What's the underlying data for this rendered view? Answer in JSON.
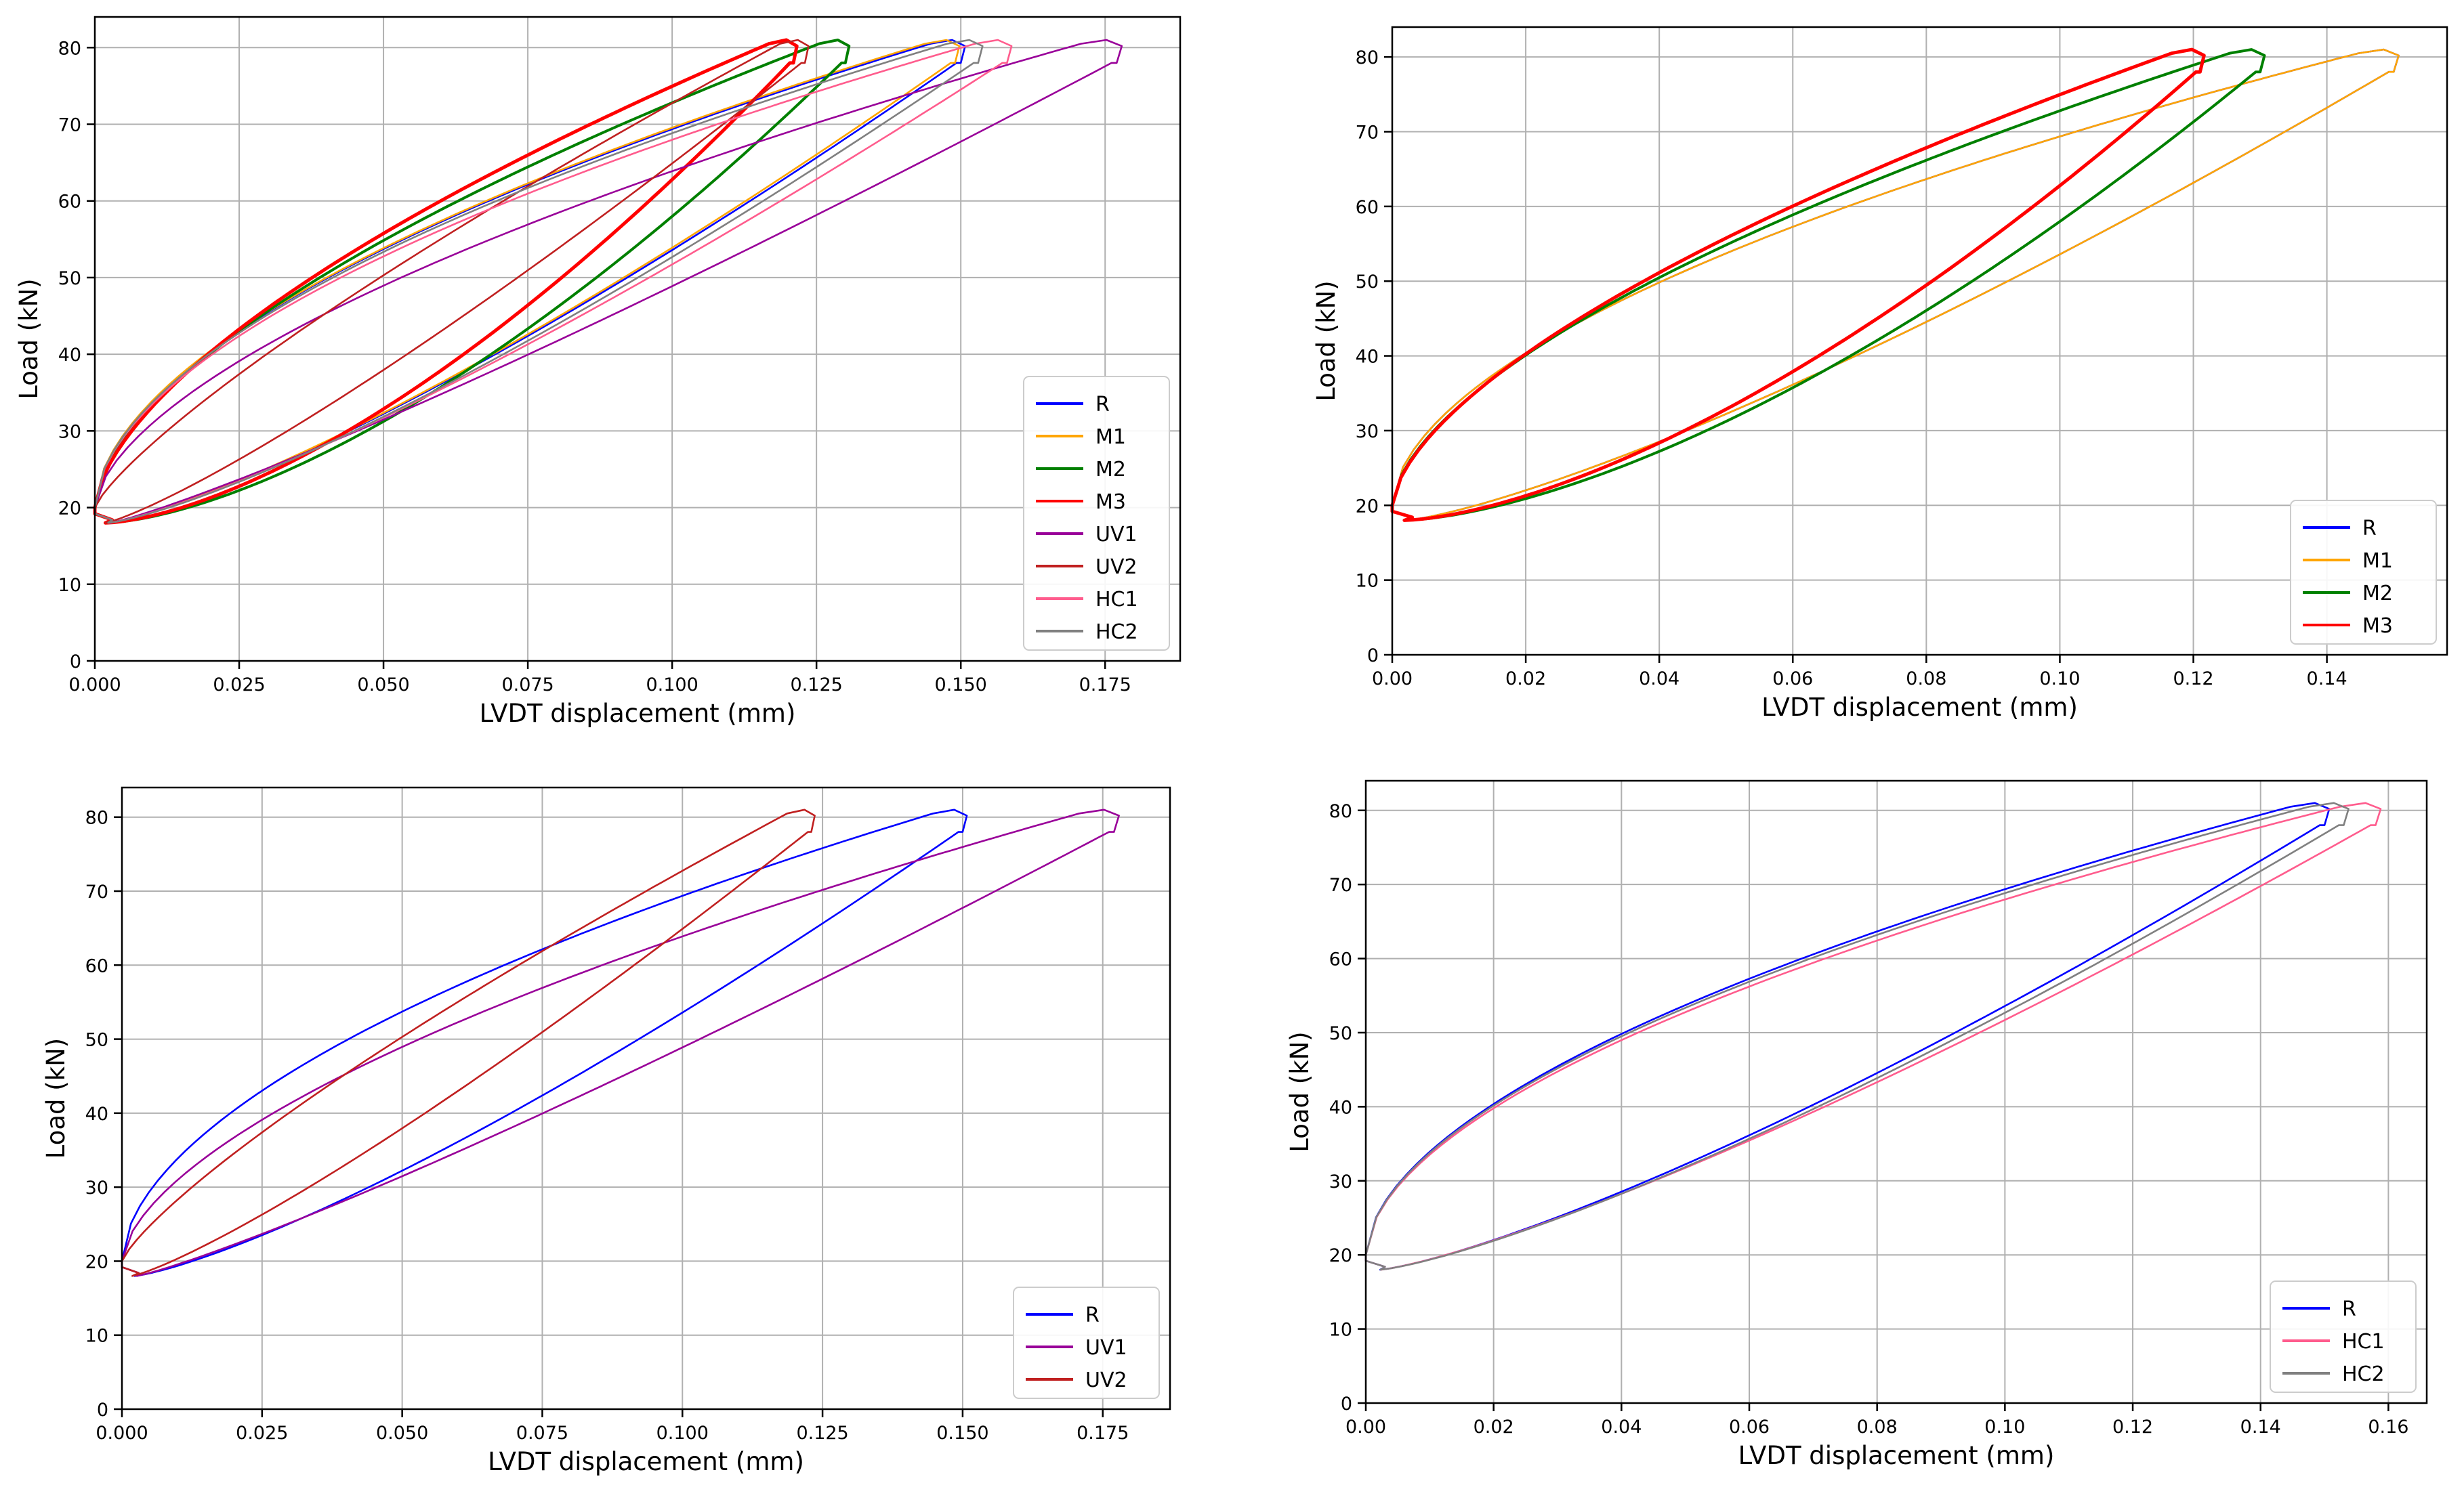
{
  "chart_data": [
    {
      "type": "line",
      "xlabel": "LVDT displacement (mm)",
      "ylabel": "Load (kN)",
      "xlim": [
        0,
        0.188
      ],
      "ylim": [
        0,
        84
      ],
      "xticks": [
        "0.000",
        "0.025",
        "0.050",
        "0.075",
        "0.100",
        "0.125",
        "0.150",
        "0.175"
      ],
      "xtick_values": [
        0,
        0.025,
        0.05,
        0.075,
        0.1,
        0.125,
        0.15,
        0.175
      ],
      "yticks": [
        "0",
        "10",
        "20",
        "30",
        "40",
        "50",
        "60",
        "70",
        "80"
      ],
      "ytick_values": [
        0,
        10,
        20,
        30,
        40,
        50,
        60,
        70,
        80
      ],
      "grid": true,
      "legend_position": "lower-right",
      "series": [
        {
          "name": "R",
          "color": "#0000ff",
          "xmax": 0.15,
          "lo_exp": 1.28,
          "up_exp": 0.55,
          "lw": 2.6
        },
        {
          "name": "M1",
          "color": "#ffa500",
          "xmax": 0.149,
          "lo_exp": 1.28,
          "up_exp": 0.55,
          "lw": 2.6
        },
        {
          "name": "M2",
          "color": "#008000",
          "xmax": 0.13,
          "lo_exp": 1.55,
          "up_exp": 0.6,
          "lw": 4
        },
        {
          "name": "M3",
          "color": "#ff0000",
          "xmax": 0.121,
          "lo_exp": 1.55,
          "up_exp": 0.62,
          "lw": 5
        },
        {
          "name": "UV1",
          "color": "#990099",
          "xmax": 0.177,
          "lo_exp": 1.15,
          "up_exp": 0.6,
          "lw": 2.6
        },
        {
          "name": "UV2",
          "color": "#c02020",
          "xmax": 0.123,
          "lo_exp": 1.2,
          "up_exp": 0.8,
          "lw": 2.6
        },
        {
          "name": "HC1",
          "color": "#ff5c8d",
          "xmax": 0.158,
          "lo_exp": 1.25,
          "up_exp": 0.55,
          "lw": 2.6
        },
        {
          "name": "HC2",
          "color": "#808080",
          "xmax": 0.153,
          "lo_exp": 1.28,
          "up_exp": 0.55,
          "lw": 2.6
        }
      ]
    },
    {
      "type": "line",
      "xlabel": "LVDT displacement (mm)",
      "ylabel": "Load (kN)",
      "xlim": [
        0,
        0.158
      ],
      "ylim": [
        0,
        84
      ],
      "xticks": [
        "0.00",
        "0.02",
        "0.04",
        "0.06",
        "0.08",
        "0.10",
        "0.12",
        "0.14"
      ],
      "xtick_values": [
        0,
        0.02,
        0.04,
        0.06,
        0.08,
        0.1,
        0.12,
        0.14
      ],
      "yticks": [
        "0",
        "10",
        "20",
        "30",
        "40",
        "50",
        "60",
        "70",
        "80"
      ],
      "ytick_values": [
        0,
        10,
        20,
        30,
        40,
        50,
        60,
        70,
        80
      ],
      "grid": true,
      "legend_position": "lower-right",
      "series": [
        {
          "name": "R",
          "color": "#0000ff",
          "xmax": 0.15,
          "lo_exp": 1.28,
          "up_exp": 0.55,
          "lw": 2.6
        },
        {
          "name": "M1",
          "color": "#ffa500",
          "xmax": 0.15,
          "lo_exp": 1.28,
          "up_exp": 0.55,
          "lw": 2.6
        },
        {
          "name": "M2",
          "color": "#008000",
          "xmax": 0.13,
          "lo_exp": 1.55,
          "up_exp": 0.6,
          "lw": 4
        },
        {
          "name": "M3",
          "color": "#ff0000",
          "xmax": 0.121,
          "lo_exp": 1.55,
          "up_exp": 0.62,
          "lw": 5
        }
      ]
    },
    {
      "type": "line",
      "xlabel": "LVDT displacement (mm)",
      "ylabel": "Load (kN)",
      "xlim": [
        0,
        0.187
      ],
      "ylim": [
        0,
        84
      ],
      "xticks": [
        "0.000",
        "0.025",
        "0.050",
        "0.075",
        "0.100",
        "0.125",
        "0.150",
        "0.175"
      ],
      "xtick_values": [
        0,
        0.025,
        0.05,
        0.075,
        0.1,
        0.125,
        0.15,
        0.175
      ],
      "yticks": [
        "0",
        "10",
        "20",
        "30",
        "40",
        "50",
        "60",
        "70",
        "80"
      ],
      "ytick_values": [
        0,
        10,
        20,
        30,
        40,
        50,
        60,
        70,
        80
      ],
      "grid": true,
      "legend_position": "lower-right",
      "series": [
        {
          "name": "R",
          "color": "#0000ff",
          "xmax": 0.15,
          "lo_exp": 1.28,
          "up_exp": 0.55,
          "lw": 2.6
        },
        {
          "name": "UV1",
          "color": "#990099",
          "xmax": 0.177,
          "lo_exp": 1.15,
          "up_exp": 0.6,
          "lw": 2.6
        },
        {
          "name": "UV2",
          "color": "#c02020",
          "xmax": 0.123,
          "lo_exp": 1.2,
          "up_exp": 0.8,
          "lw": 2.6
        }
      ]
    },
    {
      "type": "line",
      "xlabel": "LVDT displacement (mm)",
      "ylabel": "Load (kN)",
      "xlim": [
        0,
        0.166
      ],
      "ylim": [
        0,
        84
      ],
      "xticks": [
        "0.00",
        "0.02",
        "0.04",
        "0.06",
        "0.08",
        "0.10",
        "0.12",
        "0.14",
        "0.16"
      ],
      "xtick_values": [
        0,
        0.02,
        0.04,
        0.06,
        0.08,
        0.1,
        0.12,
        0.14,
        0.16
      ],
      "yticks": [
        "0",
        "10",
        "20",
        "30",
        "40",
        "50",
        "60",
        "70",
        "80"
      ],
      "ytick_values": [
        0,
        10,
        20,
        30,
        40,
        50,
        60,
        70,
        80
      ],
      "grid": true,
      "legend_position": "lower-right",
      "series": [
        {
          "name": "R",
          "color": "#0000ff",
          "xmax": 0.15,
          "lo_exp": 1.28,
          "up_exp": 0.55,
          "lw": 2.6
        },
        {
          "name": "HC1",
          "color": "#ff5c8d",
          "xmax": 0.158,
          "lo_exp": 1.25,
          "up_exp": 0.55,
          "lw": 2.6
        },
        {
          "name": "HC2",
          "color": "#808080",
          "xmax": 0.153,
          "lo_exp": 1.28,
          "up_exp": 0.55,
          "lw": 2.6
        }
      ]
    }
  ]
}
